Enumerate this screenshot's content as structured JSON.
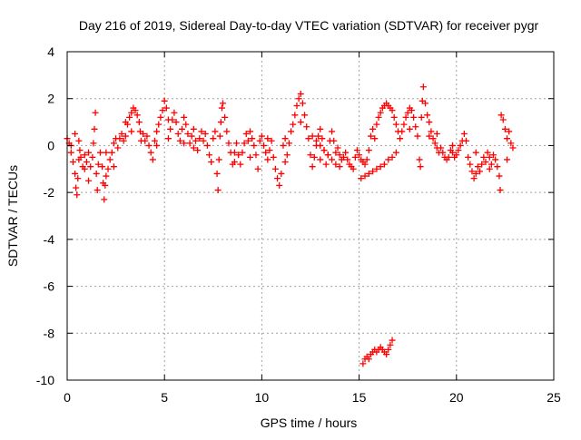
{
  "chart_data": {
    "type": "scatter",
    "title": "Day 216 of 2019, Sidereal Day-to-day VTEC variation (SDTVAR) for receiver pygr",
    "xlabel": "GPS time / hours",
    "ylabel": "SDTVAR / TECUs",
    "xlim": [
      0,
      25
    ],
    "ylim": [
      -10,
      4
    ],
    "xticks": [
      0,
      5,
      10,
      15,
      20,
      25
    ],
    "yticks": [
      -10,
      -8,
      -6,
      -4,
      -2,
      0,
      2,
      4
    ],
    "xtick_labels": [
      "0",
      "5",
      "10",
      "15",
      "20",
      "25"
    ],
    "ytick_labels": [
      "-10",
      "-8",
      "-6",
      "-4",
      "-2",
      "0",
      "2",
      "4"
    ],
    "grid": true,
    "marker": "plus",
    "color": "#ff0000",
    "series": [
      {
        "name": "SDTVAR",
        "points": [
          [
            0.0,
            0.3
          ],
          [
            0.1,
            0.1
          ],
          [
            0.2,
            -0.3
          ],
          [
            0.3,
            -0.7
          ],
          [
            0.4,
            -1.2
          ],
          [
            0.45,
            -1.8
          ],
          [
            0.5,
            -2.1
          ],
          [
            0.55,
            -1.4
          ],
          [
            0.6,
            -0.6
          ],
          [
            0.65,
            -0.2
          ],
          [
            0.7,
            -0.5
          ],
          [
            0.8,
            -0.9
          ],
          [
            0.9,
            -0.4
          ],
          [
            1.0,
            -0.7
          ],
          [
            1.1,
            -0.3
          ],
          [
            1.2,
            -0.9
          ],
          [
            1.3,
            -0.5
          ],
          [
            1.35,
            0.1
          ],
          [
            1.4,
            0.7
          ],
          [
            1.45,
            1.4
          ],
          [
            1.5,
            -1.2
          ],
          [
            1.55,
            -1.9
          ],
          [
            1.6,
            -0.8
          ],
          [
            1.7,
            -0.3
          ],
          [
            1.8,
            -0.9
          ],
          [
            1.85,
            -1.6
          ],
          [
            1.9,
            -2.3
          ],
          [
            1.95,
            -1.7
          ],
          [
            2.0,
            -1.3
          ],
          [
            2.1,
            -1.0
          ],
          [
            2.2,
            -0.6
          ],
          [
            2.3,
            -0.3
          ],
          [
            2.4,
            0.1
          ],
          [
            2.5,
            0.3
          ],
          [
            2.6,
            -0.1
          ],
          [
            2.7,
            0.3
          ],
          [
            2.8,
            0.5
          ],
          [
            2.9,
            0.2
          ],
          [
            3.0,
            0.4
          ],
          [
            3.1,
            0.9
          ],
          [
            3.2,
            1.2
          ],
          [
            3.3,
            1.4
          ],
          [
            3.4,
            1.6
          ],
          [
            3.5,
            1.5
          ],
          [
            3.6,
            1.3
          ],
          [
            3.7,
            1.0
          ],
          [
            3.75,
            0.6
          ],
          [
            3.8,
            0.2
          ],
          [
            3.9,
            0.5
          ],
          [
            4.0,
            0.2
          ],
          [
            4.1,
            0.4
          ],
          [
            4.2,
            0.0
          ],
          [
            4.3,
            -0.3
          ],
          [
            4.4,
            -0.6
          ],
          [
            4.5,
            0.2
          ],
          [
            4.6,
            0.6
          ],
          [
            4.7,
            0.9
          ],
          [
            4.8,
            1.2
          ],
          [
            4.9,
            1.5
          ],
          [
            5.0,
            1.9
          ],
          [
            5.1,
            1.6
          ],
          [
            5.2,
            1.1
          ],
          [
            5.3,
            0.7
          ],
          [
            5.4,
            1.1
          ],
          [
            5.5,
            1.4
          ],
          [
            5.6,
            1.0
          ],
          [
            5.7,
            0.5
          ],
          [
            5.8,
            0.2
          ],
          [
            5.9,
            0.7
          ],
          [
            6.0,
            1.2
          ],
          [
            6.1,
            0.9
          ],
          [
            6.2,
            0.5
          ],
          [
            6.3,
            0.1
          ],
          [
            6.4,
            0.4
          ],
          [
            6.5,
            0.7
          ],
          [
            6.6,
            0.2
          ],
          [
            6.7,
            -0.2
          ],
          [
            6.8,
            0.3
          ],
          [
            6.9,
            0.6
          ],
          [
            7.0,
            0.2
          ],
          [
            7.1,
            0.5
          ],
          [
            7.2,
            0.0
          ],
          [
            7.3,
            -0.4
          ],
          [
            7.4,
            -0.7
          ],
          [
            7.5,
            0.3
          ],
          [
            7.6,
            0.6
          ],
          [
            7.7,
            -1.2
          ],
          [
            7.75,
            -1.9
          ],
          [
            7.8,
            -0.6
          ],
          [
            7.85,
            0.4
          ],
          [
            7.9,
            1.0
          ],
          [
            7.95,
            1.6
          ],
          [
            8.0,
            1.8
          ],
          [
            8.1,
            1.2
          ],
          [
            8.2,
            0.6
          ],
          [
            8.3,
            0.1
          ],
          [
            8.4,
            -0.3
          ],
          [
            8.5,
            -0.8
          ],
          [
            8.6,
            -0.3
          ],
          [
            8.7,
            0.1
          ],
          [
            8.8,
            -0.4
          ],
          [
            8.9,
            -0.8
          ],
          [
            9.0,
            -0.3
          ],
          [
            9.1,
            0.1
          ],
          [
            9.2,
            0.5
          ],
          [
            9.3,
            0.2
          ],
          [
            9.4,
            0.6
          ],
          [
            9.5,
            0.3
          ],
          [
            9.6,
            0.0
          ],
          [
            9.7,
            -0.4
          ],
          [
            9.8,
            -1.0
          ],
          [
            9.9,
            0.2
          ],
          [
            10.0,
            0.4
          ],
          [
            10.1,
            0.0
          ],
          [
            10.2,
            -0.3
          ],
          [
            10.3,
            -0.6
          ],
          [
            10.4,
            -0.2
          ],
          [
            10.5,
            0.2
          ],
          [
            10.6,
            -0.5
          ],
          [
            10.7,
            -1.0
          ],
          [
            10.8,
            -1.4
          ],
          [
            10.9,
            -1.7
          ],
          [
            11.0,
            -1.2
          ],
          [
            11.1,
            0.0
          ],
          [
            11.2,
            0.3
          ],
          [
            11.3,
            -0.4
          ],
          [
            11.4,
            0.1
          ],
          [
            11.5,
            0.6
          ],
          [
            11.6,
            0.9
          ],
          [
            11.7,
            1.3
          ],
          [
            11.8,
            1.7
          ],
          [
            11.9,
            2.0
          ],
          [
            12.0,
            2.2
          ],
          [
            12.1,
            1.8
          ],
          [
            12.2,
            1.3
          ],
          [
            12.3,
            0.8
          ],
          [
            12.4,
            0.3
          ],
          [
            12.5,
            -0.4
          ],
          [
            12.6,
            -0.9
          ],
          [
            12.7,
            -0.5
          ],
          [
            12.8,
            0.0
          ],
          [
            12.9,
            0.4
          ],
          [
            13.0,
            0.7
          ],
          [
            13.1,
            0.3
          ],
          [
            13.2,
            -0.2
          ],
          [
            13.3,
            -0.8
          ],
          [
            13.4,
            -0.4
          ],
          [
            13.5,
            0.2
          ],
          [
            13.6,
            0.6
          ],
          [
            13.7,
            0.2
          ],
          [
            13.8,
            -0.3
          ],
          [
            13.9,
            -0.1
          ],
          [
            14.0,
            -0.4
          ],
          [
            14.1,
            -0.6
          ],
          [
            14.2,
            -0.5
          ],
          [
            14.3,
            -0.3
          ],
          [
            14.4,
            -0.6
          ],
          [
            14.5,
            -0.8
          ],
          [
            14.6,
            -0.9
          ],
          [
            14.7,
            -1.0
          ],
          [
            14.8,
            -0.5
          ],
          [
            14.9,
            -0.2
          ],
          [
            15.0,
            -0.4
          ],
          [
            15.1,
            -0.6
          ],
          [
            15.2,
            -0.7
          ],
          [
            15.3,
            -0.8
          ],
          [
            15.4,
            -0.6
          ],
          [
            15.5,
            -0.2
          ],
          [
            15.6,
            0.4
          ],
          [
            15.7,
            0.7
          ],
          [
            15.8,
            0.3
          ],
          [
            15.9,
            0.9
          ],
          [
            16.0,
            1.2
          ],
          [
            16.1,
            1.4
          ],
          [
            16.2,
            1.6
          ],
          [
            16.3,
            1.7
          ],
          [
            16.4,
            1.8
          ],
          [
            16.5,
            1.7
          ],
          [
            16.6,
            1.6
          ],
          [
            16.7,
            1.5
          ],
          [
            16.8,
            1.2
          ],
          [
            16.9,
            0.9
          ],
          [
            17.0,
            0.6
          ],
          [
            17.1,
            0.3
          ],
          [
            17.2,
            0.6
          ],
          [
            17.3,
            0.9
          ],
          [
            17.4,
            1.2
          ],
          [
            17.5,
            1.4
          ],
          [
            17.6,
            1.6
          ],
          [
            17.7,
            1.5
          ],
          [
            17.8,
            1.2
          ],
          [
            17.9,
            0.8
          ],
          [
            18.0,
            0.4
          ],
          [
            18.1,
            -0.6
          ],
          [
            18.15,
            -0.9
          ],
          [
            18.2,
            1.2
          ],
          [
            18.25,
            1.9
          ],
          [
            18.3,
            2.5
          ],
          [
            18.4,
            1.8
          ],
          [
            18.5,
            1.3
          ],
          [
            18.6,
            1.0
          ],
          [
            18.7,
            0.6
          ],
          [
            18.8,
            0.3
          ],
          [
            18.9,
            0.1
          ],
          [
            19.0,
            -0.1
          ],
          [
            19.1,
            -0.3
          ],
          [
            19.2,
            -0.1
          ],
          [
            19.3,
            -0.3
          ],
          [
            19.4,
            -0.5
          ],
          [
            19.5,
            -0.6
          ],
          [
            19.6,
            -0.5
          ],
          [
            19.7,
            -0.2
          ],
          [
            19.8,
            -0.3
          ],
          [
            19.9,
            -0.5
          ],
          [
            20.0,
            -0.4
          ],
          [
            20.1,
            -0.2
          ],
          [
            20.2,
            0.0
          ],
          [
            20.3,
            0.2
          ],
          [
            20.4,
            0.5
          ],
          [
            20.5,
            0.2
          ],
          [
            20.6,
            -0.5
          ],
          [
            20.7,
            -0.8
          ],
          [
            20.8,
            -1.1
          ],
          [
            20.9,
            -1.4
          ],
          [
            21.0,
            -1.2
          ],
          [
            21.1,
            -0.9
          ],
          [
            21.2,
            -1.1
          ],
          [
            21.3,
            -0.8
          ],
          [
            21.4,
            -0.5
          ],
          [
            21.5,
            -0.7
          ],
          [
            21.6,
            -0.3
          ],
          [
            21.7,
            -0.5
          ],
          [
            21.8,
            -0.8
          ],
          [
            21.9,
            -0.4
          ],
          [
            22.0,
            -0.6
          ],
          [
            22.1,
            -0.9
          ],
          [
            22.2,
            -1.3
          ],
          [
            22.25,
            -1.9
          ],
          [
            22.3,
            1.3
          ],
          [
            22.4,
            1.1
          ],
          [
            22.5,
            0.7
          ],
          [
            22.6,
            0.3
          ],
          [
            22.7,
            0.6
          ],
          [
            22.8,
            0.1
          ],
          [
            22.9,
            -0.1
          ],
          [
            15.1,
            -1.4
          ],
          [
            15.3,
            -1.3
          ],
          [
            15.5,
            -1.2
          ],
          [
            15.7,
            -1.1
          ],
          [
            15.9,
            -1.0
          ],
          [
            16.1,
            -0.9
          ],
          [
            16.3,
            -0.8
          ],
          [
            16.5,
            -0.6
          ],
          [
            16.7,
            -0.5
          ],
          [
            16.9,
            -0.3
          ],
          [
            12.6,
            0.4
          ],
          [
            12.8,
            0.2
          ],
          [
            13.0,
            0.0
          ],
          [
            13.2,
            -0.2
          ],
          [
            13.4,
            -0.4
          ],
          [
            13.6,
            -0.6
          ],
          [
            13.8,
            -0.8
          ],
          [
            14.0,
            -0.9
          ],
          [
            0.2,
            0.0
          ],
          [
            0.4,
            0.5
          ],
          [
            0.6,
            0.2
          ],
          [
            0.9,
            -1.0
          ],
          [
            1.1,
            -1.5
          ],
          [
            2.0,
            -0.3
          ],
          [
            2.4,
            -0.9
          ],
          [
            3.0,
            1.0
          ],
          [
            3.3,
            0.6
          ],
          [
            4.6,
            0.0
          ],
          [
            5.2,
            0.3
          ],
          [
            6.0,
            0.1
          ],
          [
            6.5,
            -0.1
          ],
          [
            8.6,
            -0.7
          ],
          [
            9.4,
            -0.5
          ],
          [
            10.3,
            0.3
          ],
          [
            11.2,
            -0.7
          ],
          [
            12.0,
            1.0
          ],
          [
            13.0,
            -0.6
          ],
          [
            17.6,
            0.7
          ],
          [
            18.6,
            0.4
          ],
          [
            19.0,
            0.5
          ],
          [
            19.8,
            0.0
          ],
          [
            21.0,
            -0.3
          ],
          [
            21.7,
            -1.0
          ],
          [
            22.6,
            -0.6
          ],
          [
            15.2,
            -9.3
          ],
          [
            15.3,
            -9.1
          ],
          [
            15.4,
            -9.0
          ],
          [
            15.5,
            -9.1
          ],
          [
            15.6,
            -8.9
          ],
          [
            15.7,
            -8.8
          ],
          [
            15.8,
            -8.7
          ],
          [
            15.9,
            -8.8
          ],
          [
            16.0,
            -8.7
          ],
          [
            16.1,
            -8.6
          ],
          [
            16.2,
            -8.7
          ],
          [
            16.3,
            -8.8
          ],
          [
            16.4,
            -8.9
          ],
          [
            16.5,
            -8.7
          ],
          [
            16.6,
            -8.5
          ],
          [
            16.7,
            -8.3
          ]
        ]
      }
    ]
  }
}
